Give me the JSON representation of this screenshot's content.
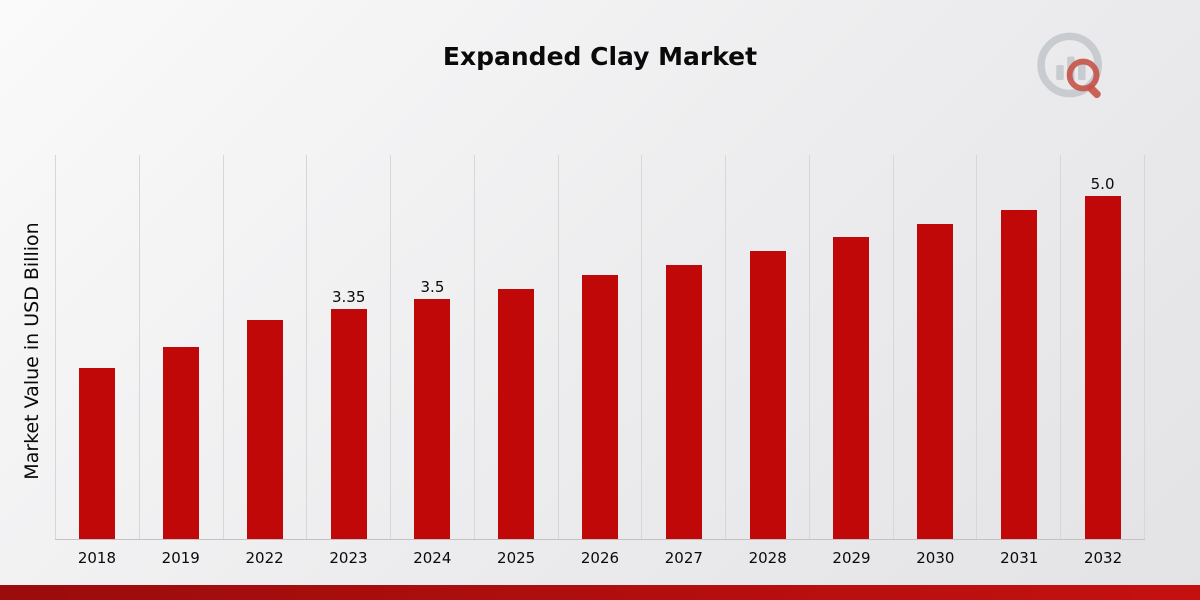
{
  "title": "Expanded Clay Market",
  "ylabel": "Market Value in USD Billion",
  "colors": {
    "bar": "#c00808",
    "band_left": "#9b0c0c",
    "band_right": "#c51010",
    "gridline": "#d7d7d9",
    "logo_gray": "#c3c7cc",
    "logo_red": "#c0392b"
  },
  "chart_data": {
    "type": "bar",
    "title": "Expanded Clay Market",
    "xlabel": "",
    "ylabel": "Market Value in USD Billion",
    "categories": [
      "2018",
      "2019",
      "2022",
      "2023",
      "2024",
      "2025",
      "2026",
      "2027",
      "2028",
      "2029",
      "2030",
      "2031",
      "2032"
    ],
    "values": [
      2.5,
      2.8,
      3.2,
      3.35,
      3.5,
      3.65,
      3.85,
      4.0,
      4.2,
      4.4,
      4.6,
      4.8,
      5.0
    ],
    "data_labels": {
      "2023": "3.35",
      "2024": "3.5",
      "2032": "5.0"
    },
    "ylim": [
      0,
      5.6
    ],
    "grid": "vertical",
    "legend": "none"
  }
}
